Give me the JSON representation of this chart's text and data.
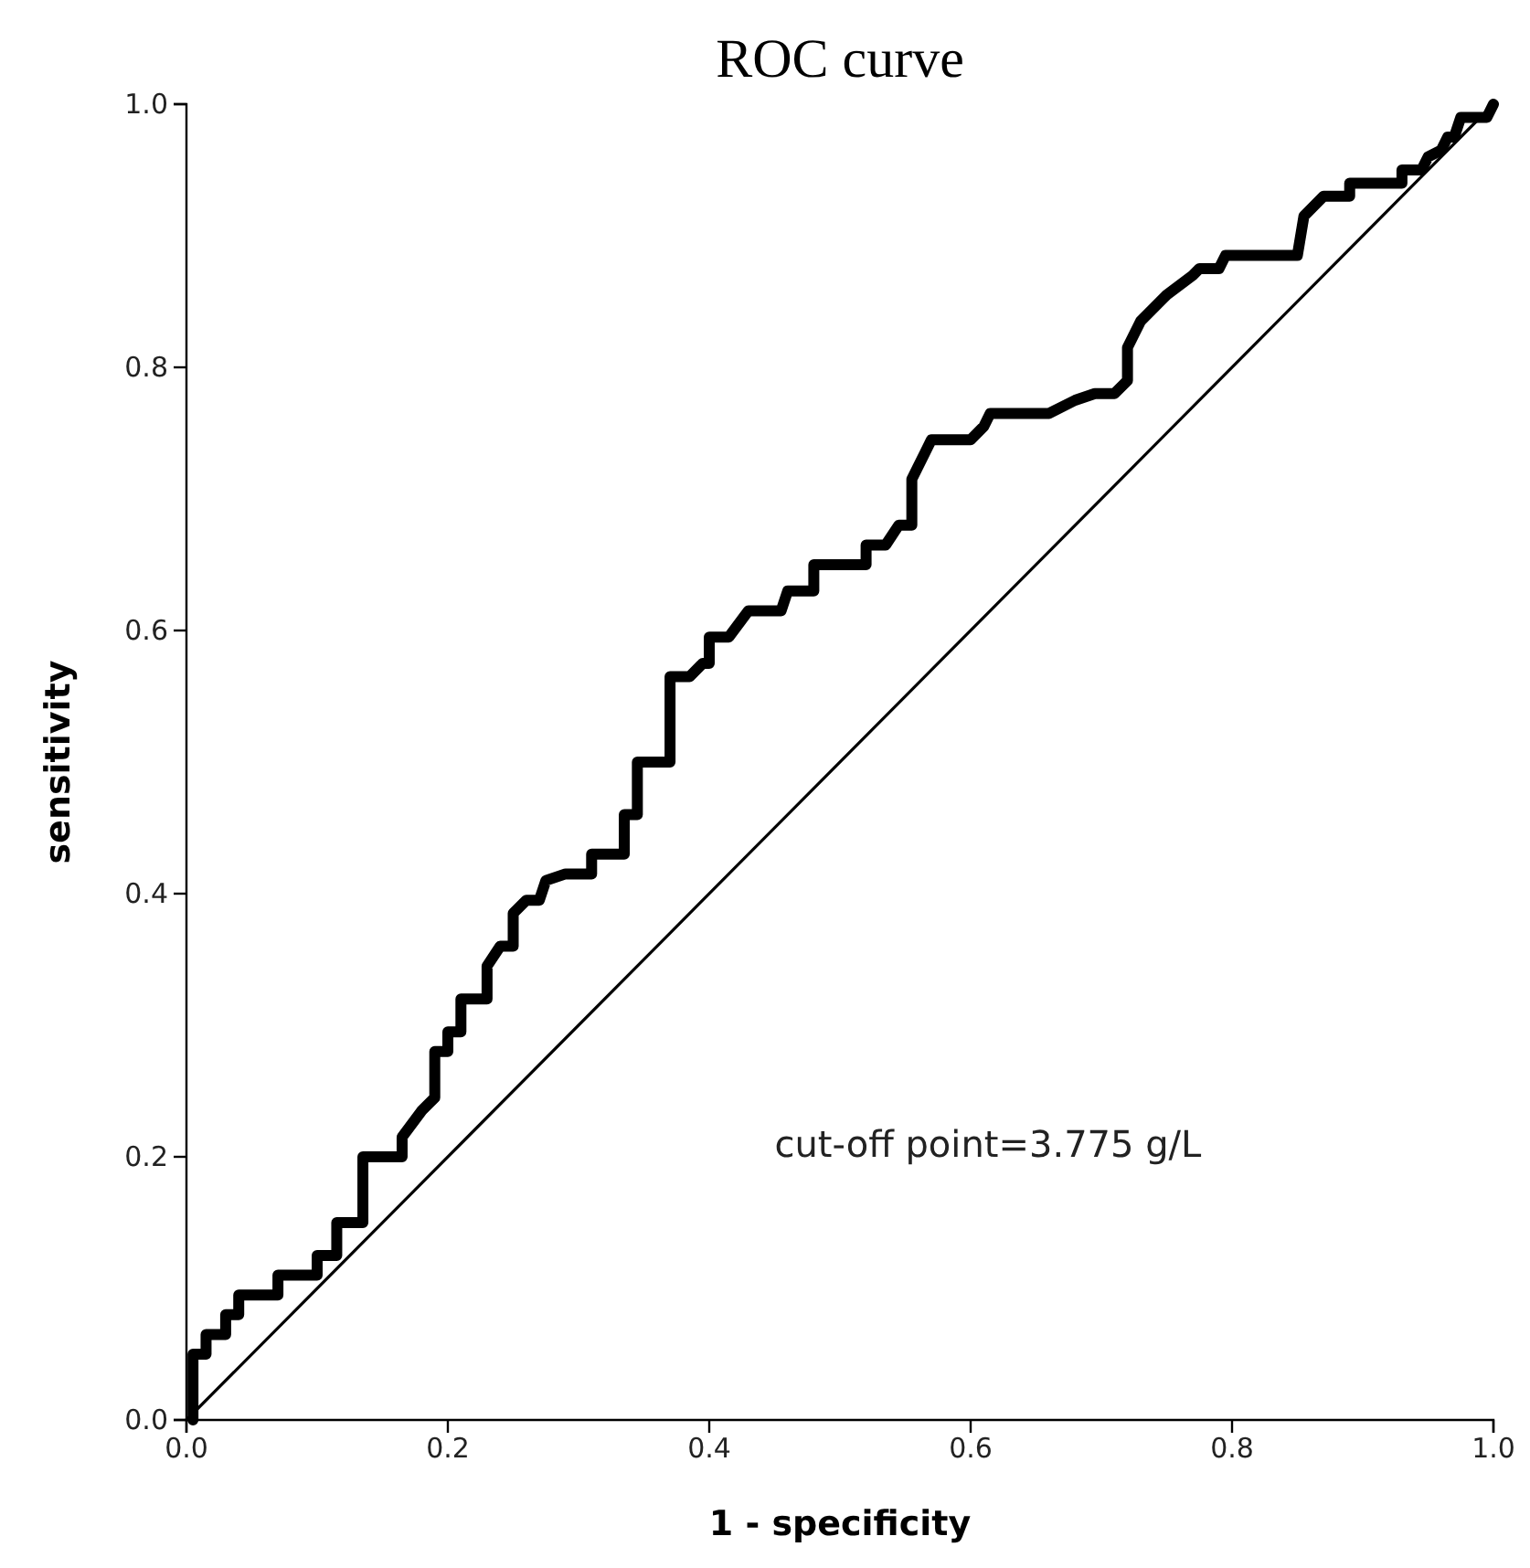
{
  "chart_data": {
    "type": "line",
    "title": "ROC curve",
    "xlabel": "1 - specificity",
    "ylabel": "sensitivity",
    "xlim": [
      0,
      1
    ],
    "ylim": [
      0,
      1
    ],
    "xticks": [
      {
        "value": 0,
        "label": "0.0"
      },
      {
        "value": 0.2,
        "label": "0.2"
      },
      {
        "value": 0.4,
        "label": "0.4"
      },
      {
        "value": 0.6,
        "label": "0.6"
      },
      {
        "value": 0.8,
        "label": "0.8"
      },
      {
        "value": 1,
        "label": "1.0"
      }
    ],
    "yticks": [
      {
        "value": 0,
        "label": "0.0"
      },
      {
        "value": 0.2,
        "label": "0.2"
      },
      {
        "value": 0.4,
        "label": "0.4"
      },
      {
        "value": 0.6,
        "label": "0.6"
      },
      {
        "value": 0.8,
        "label": "0.8"
      },
      {
        "value": 1,
        "label": "1.0"
      }
    ],
    "grid": false,
    "marker": "none",
    "line_style": "solid",
    "annotations": [
      "cut-off point=3.775 g/L"
    ],
    "series": [
      {
        "color": "#000000",
        "x": [
          0.005,
          0.005,
          0.015,
          0.015,
          0.03,
          0.03,
          0.04,
          0.04,
          0.07,
          0.07,
          0.1,
          0.1,
          0.115,
          0.115,
          0.135,
          0.135,
          0.165,
          0.165,
          0.18,
          0.19,
          0.19,
          0.2,
          0.2,
          0.21,
          0.21,
          0.23,
          0.23,
          0.24,
          0.25,
          0.25,
          0.26,
          0.27,
          0.275,
          0.29,
          0.31,
          0.31,
          0.335,
          0.335,
          0.345,
          0.345,
          0.37,
          0.37,
          0.385,
          0.395,
          0.4,
          0.4,
          0.415,
          0.43,
          0.455,
          0.46,
          0.48,
          0.48,
          0.52,
          0.52,
          0.535,
          0.545,
          0.555,
          0.555,
          0.565,
          0.57,
          0.6,
          0.61,
          0.615,
          0.66,
          0.68,
          0.695,
          0.71,
          0.72,
          0.72,
          0.73,
          0.75,
          0.77,
          0.775,
          0.79,
          0.795,
          0.85,
          0.855,
          0.87,
          0.89,
          0.89,
          0.93,
          0.93,
          0.945,
          0.95,
          0.96,
          0.965,
          0.97,
          0.975,
          0.995,
          1.0
        ],
        "values": [
          0,
          0.05,
          0.05,
          0.065,
          0.065,
          0.08,
          0.08,
          0.095,
          0.095,
          0.11,
          0.11,
          0.125,
          0.125,
          0.15,
          0.15,
          0.2,
          0.2,
          0.215,
          0.235,
          0.245,
          0.28,
          0.28,
          0.295,
          0.295,
          0.32,
          0.32,
          0.345,
          0.36,
          0.36,
          0.385,
          0.395,
          0.395,
          0.41,
          0.415,
          0.415,
          0.43,
          0.43,
          0.46,
          0.46,
          0.5,
          0.5,
          0.565,
          0.565,
          0.575,
          0.575,
          0.595,
          0.595,
          0.615,
          0.615,
          0.63,
          0.63,
          0.65,
          0.65,
          0.665,
          0.665,
          0.68,
          0.68,
          0.715,
          0.735,
          0.745,
          0.745,
          0.755,
          0.765,
          0.765,
          0.775,
          0.78,
          0.78,
          0.79,
          0.815,
          0.835,
          0.855,
          0.87,
          0.875,
          0.875,
          0.885,
          0.885,
          0.915,
          0.93,
          0.93,
          0.94,
          0.94,
          0.95,
          0.95,
          0.96,
          0.965,
          0.975,
          0.975,
          0.99,
          0.99,
          1.0
        ]
      },
      {
        "color": "#000000",
        "x": [
          0,
          1
        ],
        "values": [
          0,
          1
        ]
      }
    ]
  }
}
